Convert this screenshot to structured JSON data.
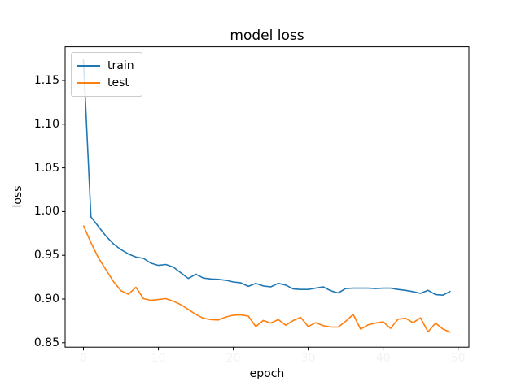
{
  "figure": {
    "title": "model loss",
    "xlabel": "epoch",
    "ylabel": "loss",
    "background": "#ffffff"
  },
  "legend": {
    "position": "upper-left",
    "entries": [
      {
        "label": "train",
        "color": "#1f77b4"
      },
      {
        "label": "test",
        "color": "#ff7f0e"
      }
    ]
  },
  "chart_data": {
    "type": "line",
    "title": "model loss",
    "xlabel": "epoch",
    "ylabel": "loss",
    "grid": false,
    "legend_position": "upper-left",
    "xlim": [
      -2.45,
      51.45
    ],
    "ylim": [
      0.845,
      1.1885
    ],
    "x_ticks": [
      0,
      10,
      20,
      30,
      40,
      50
    ],
    "x_tick_labels": [
      "0",
      "10",
      "20",
      "30",
      "40",
      "50"
    ],
    "x_tick_label_color": "#f3f3f3",
    "y_ticks": [
      0.85,
      0.9,
      0.95,
      1.0,
      1.05,
      1.1,
      1.15
    ],
    "y_tick_labels": [
      "0.85",
      "0.90",
      "0.95",
      "1.00",
      "1.05",
      "1.10",
      "1.15"
    ],
    "x": [
      0,
      1,
      2,
      3,
      4,
      5,
      6,
      7,
      8,
      9,
      10,
      11,
      12,
      13,
      14,
      15,
      16,
      17,
      18,
      19,
      20,
      21,
      22,
      23,
      24,
      25,
      26,
      27,
      28,
      29,
      30,
      31,
      32,
      33,
      34,
      35,
      36,
      37,
      38,
      39,
      40,
      41,
      42,
      43,
      44,
      45,
      46,
      47,
      48,
      49
    ],
    "series": [
      {
        "name": "train",
        "color": "#1f77b4",
        "values": [
          1.174,
          0.994,
          0.983,
          0.972,
          0.963,
          0.9565,
          0.9515,
          0.948,
          0.9465,
          0.941,
          0.9385,
          0.9395,
          0.9365,
          0.93,
          0.9235,
          0.9285,
          0.924,
          0.923,
          0.9225,
          0.9215,
          0.9195,
          0.9185,
          0.9145,
          0.918,
          0.915,
          0.914,
          0.918,
          0.916,
          0.9115,
          0.911,
          0.911,
          0.9125,
          0.914,
          0.9095,
          0.907,
          0.912,
          0.9125,
          0.9125,
          0.9125,
          0.912,
          0.9125,
          0.9125,
          0.911,
          0.91,
          0.9085,
          0.9065,
          0.91,
          0.905,
          0.9045,
          0.909
        ]
      },
      {
        "name": "test",
        "color": "#ff7f0e",
        "values": [
          0.984,
          0.9645,
          0.947,
          0.9335,
          0.92,
          0.9095,
          0.9055,
          0.9135,
          0.9005,
          0.8985,
          0.8995,
          0.9005,
          0.8975,
          0.8935,
          0.888,
          0.8825,
          0.878,
          0.8765,
          0.876,
          0.8795,
          0.8815,
          0.882,
          0.8805,
          0.8685,
          0.8755,
          0.8725,
          0.8765,
          0.87,
          0.8755,
          0.879,
          0.8685,
          0.873,
          0.8695,
          0.868,
          0.868,
          0.8745,
          0.8825,
          0.8655,
          0.8705,
          0.8725,
          0.874,
          0.8665,
          0.877,
          0.878,
          0.873,
          0.8785,
          0.8625,
          0.8725,
          0.8655,
          0.862
        ]
      }
    ]
  }
}
